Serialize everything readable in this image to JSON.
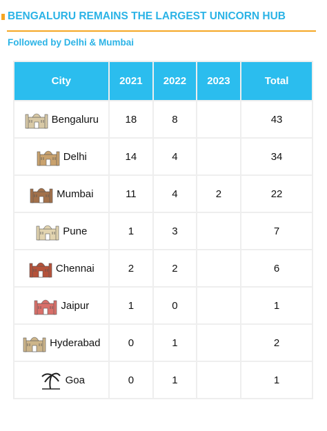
{
  "header": {
    "title": "BENGALURU REMAINS THE LARGEST UNICORN HUB",
    "subtitle": "Followed by Delhi & Mumbai"
  },
  "table": {
    "columns": [
      "City",
      "2021",
      "2022",
      "2023",
      "Total"
    ],
    "rows": [
      [
        "Bengaluru",
        18,
        8,
        null,
        43
      ],
      [
        "Delhi",
        14,
        4,
        null,
        34
      ],
      [
        "Mumbai",
        11,
        4,
        2,
        22
      ],
      [
        "Pune",
        1,
        3,
        null,
        7
      ],
      [
        "Chennai",
        2,
        2,
        null,
        6
      ],
      [
        "Jaipur",
        1,
        0,
        null,
        1
      ],
      [
        "Hyderabad",
        0,
        1,
        null,
        2
      ],
      [
        "Goa",
        0,
        1,
        null,
        1
      ]
    ]
  }
}
